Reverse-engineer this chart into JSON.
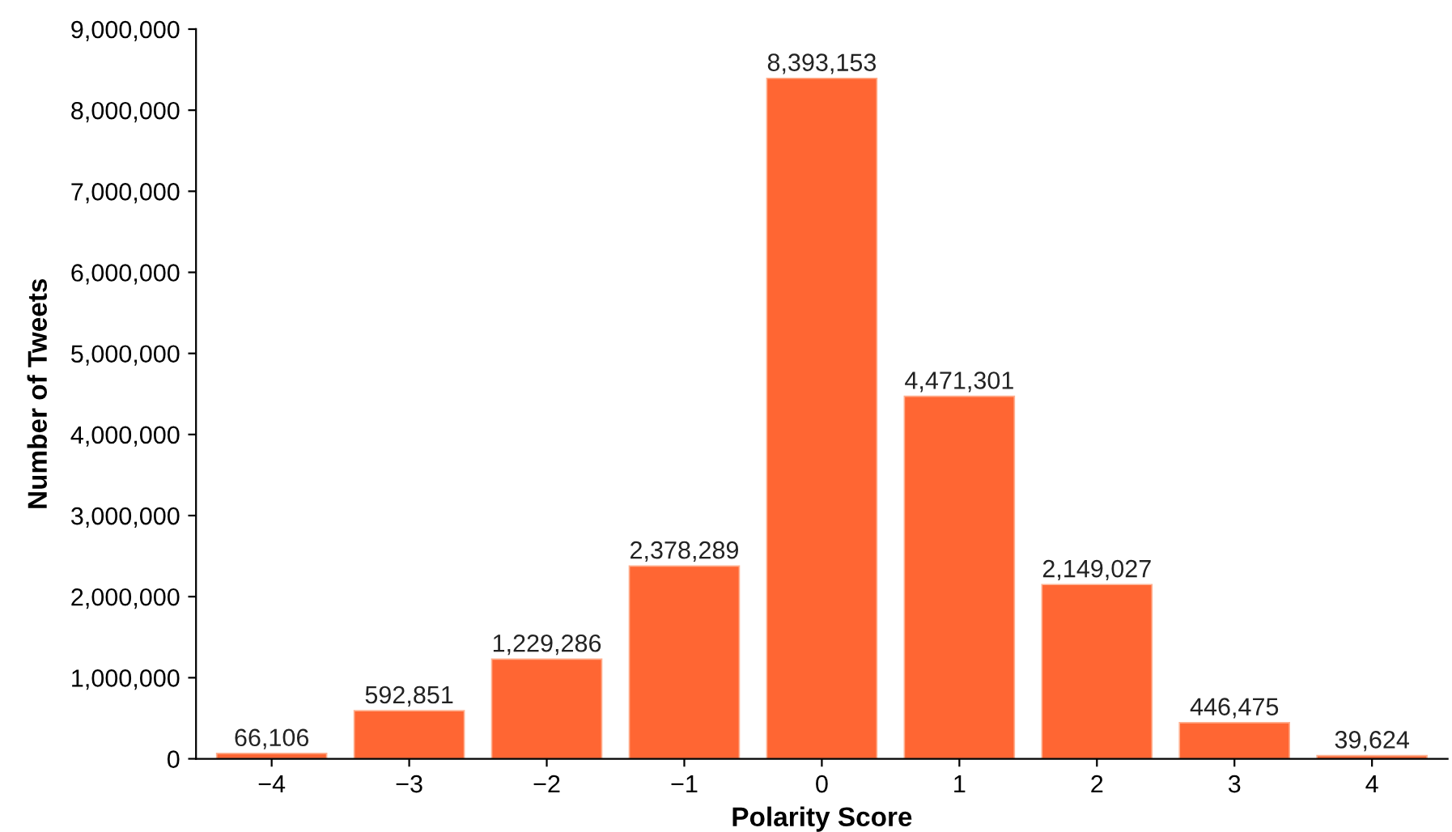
{
  "chart_data": {
    "type": "bar",
    "xlabel": "Polarity Score",
    "ylabel": "Number of Tweets",
    "categories": [
      "−4",
      "−3",
      "−2",
      "−1",
      "0",
      "1",
      "2",
      "3",
      "4"
    ],
    "values": [
      66106,
      592851,
      1229286,
      2378289,
      8393153,
      4471301,
      2149027,
      446475,
      39624
    ],
    "color": "#ff6633",
    "ylim": [
      0,
      9000000
    ],
    "yticks": [
      {
        "value": 0,
        "label": "0"
      },
      {
        "value": 1000000,
        "label": "1,000,000"
      },
      {
        "value": 2000000,
        "label": "2,000,000"
      },
      {
        "value": 3000000,
        "label": "3,000,000"
      },
      {
        "value": 4000000,
        "label": "4,000,000"
      },
      {
        "value": 5000000,
        "label": "5,000,000"
      },
      {
        "value": 6000000,
        "label": "6,000,000"
      },
      {
        "value": 7000000,
        "label": "7,000,000"
      },
      {
        "value": 8000000,
        "label": "8,000,000"
      },
      {
        "value": 9000000,
        "label": "9,000,000"
      }
    ],
    "value_labels": [
      "66,106",
      "592,851",
      "1,229,286",
      "2,378,289",
      "8,393,153",
      "4,471,301",
      "2,149,027",
      "446,475",
      "39,624"
    ],
    "grid": false,
    "legend": false
  }
}
